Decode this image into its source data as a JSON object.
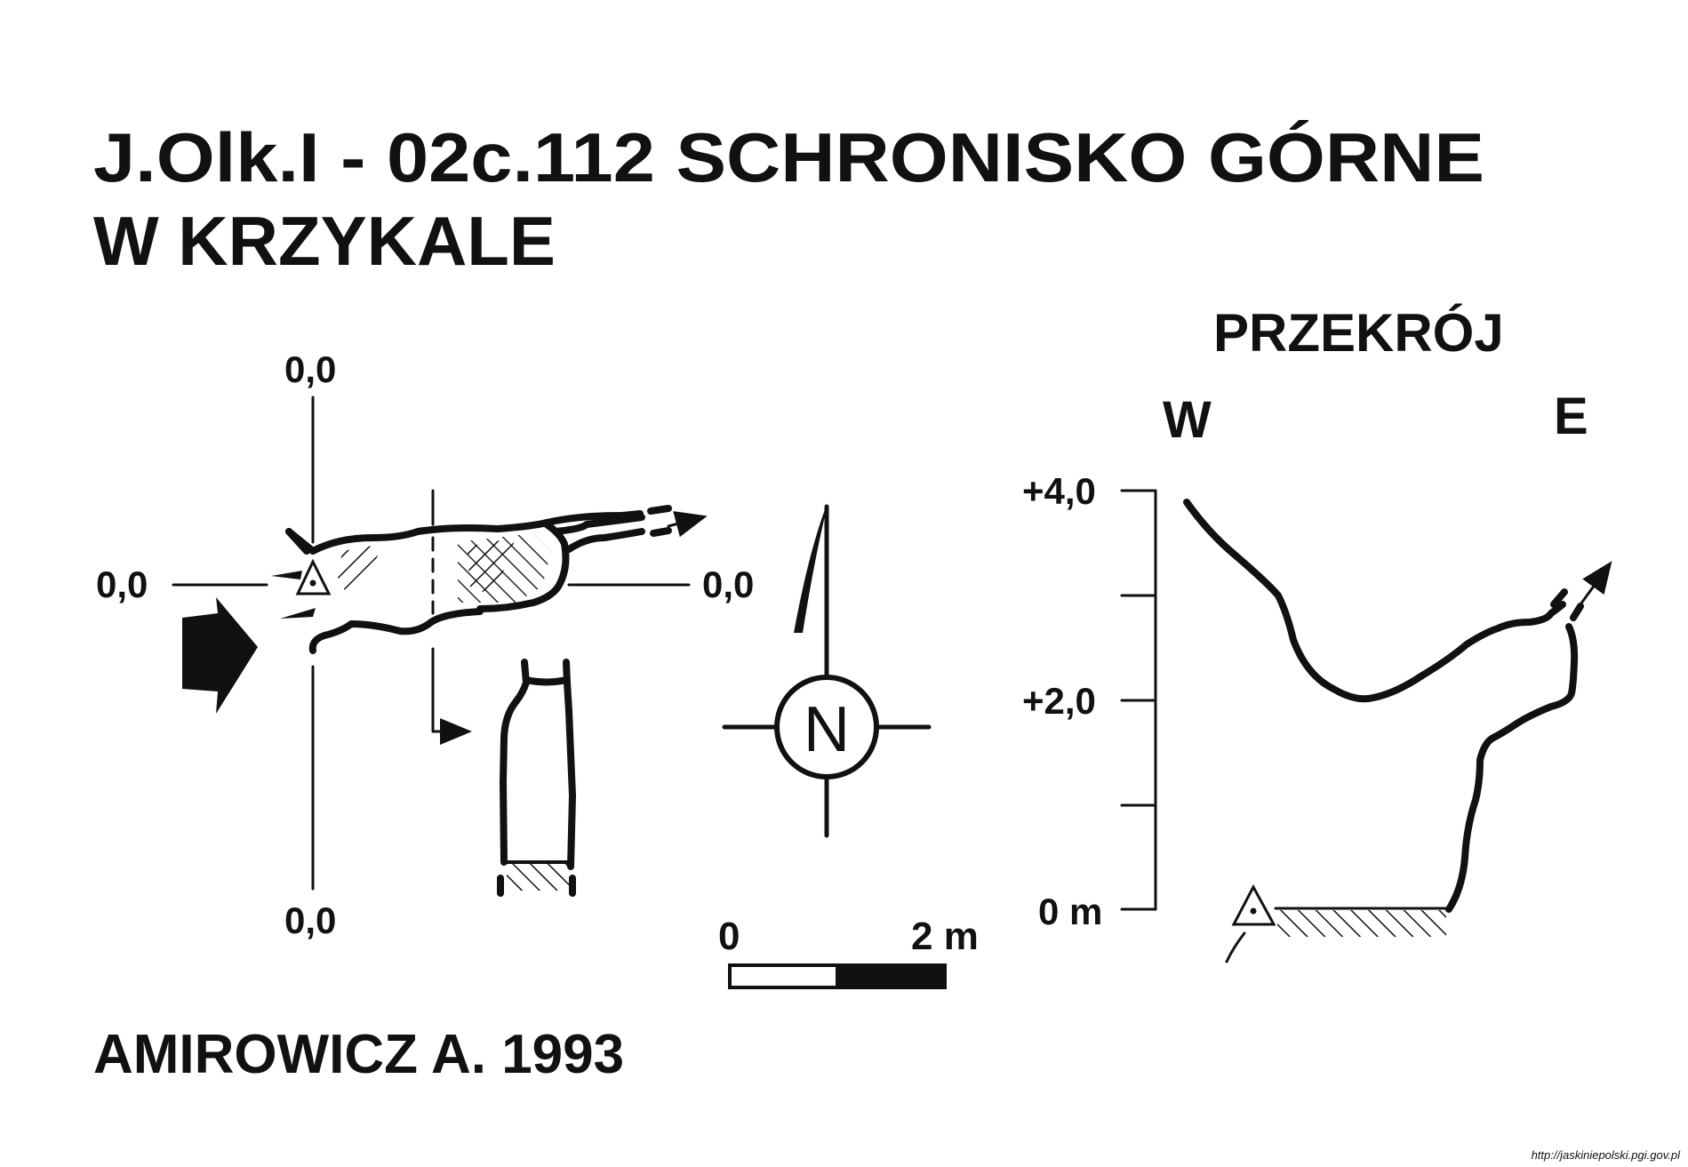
{
  "title": {
    "line1": "J.Olk.I - 02c.112  SCHRONISKO GÓRNE",
    "line2": "W KRZYKALE"
  },
  "plan": {
    "label_top": "0,0",
    "label_left": "0,0",
    "label_right": "0,0",
    "label_bottom": "0,0"
  },
  "compass": {
    "north_label": "N"
  },
  "scale_bar": {
    "start_label": "0",
    "end_label": "2 m"
  },
  "section": {
    "title": "PRZEKRÓJ",
    "west_label": "W",
    "east_label": "E",
    "ticks": {
      "top": "+4,0",
      "middle": "+2,0",
      "bottom": "0 m"
    }
  },
  "author": "AMIROWICZ A. 1993",
  "source_url": "http://jaskiniepolski.pgi.gov.pl"
}
